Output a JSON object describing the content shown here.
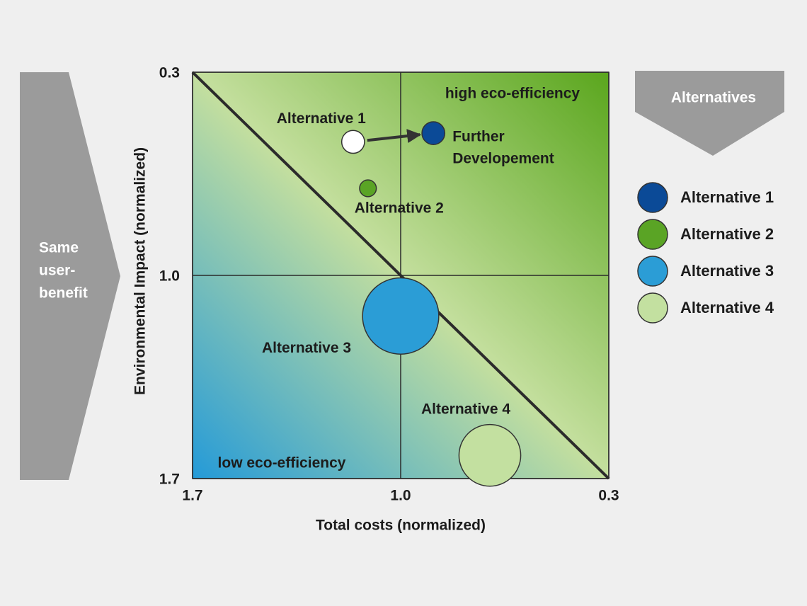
{
  "chart_data": {
    "type": "bubble",
    "xlabel": "Total costs (normalized)",
    "ylabel": "Environmental Impact (normalized)",
    "xlim": [
      1.7,
      0.3
    ],
    "ylim": [
      1.7,
      0.3
    ],
    "xticks": [
      1.7,
      {
        "value": 1,
        "label": "1.0"
      },
      0.3
    ],
    "yticks": [
      1.7,
      {
        "value": 1,
        "label": "1.0"
      },
      0.3
    ],
    "region_labels": [
      "high eco-efficiency",
      "low eco-efficiency"
    ],
    "benefit_label": [
      "Same",
      "user-",
      "benefit"
    ],
    "legend_title": "Alternatives",
    "series": [
      {
        "name": "Alternative 1",
        "color": "#0b4a97",
        "x": [
          1.16,
          0.89
        ],
        "y": [
          0.54,
          0.51
        ],
        "size": [
          2.6,
          2.6
        ],
        "point_colors": [
          "#ffffff",
          "#0b4a97"
        ],
        "point_labels": [
          [
            "Alternative 1"
          ],
          [
            "Further",
            "Developement"
          ]
        ]
      },
      {
        "name": "Alternative 2",
        "color": "#5aa425",
        "x": [
          1.11
        ],
        "y": [
          0.7
        ],
        "size": [
          1.4
        ],
        "point_colors": [
          "#5aa425"
        ],
        "point_labels": [
          [
            "Alternative 2"
          ]
        ]
      },
      {
        "name": "Alternative 3",
        "color": "#2b9dd6",
        "x": [
          1.0
        ],
        "y": [
          1.14
        ],
        "size": [
          29
        ],
        "point_colors": [
          "#2b9dd6"
        ],
        "point_labels": [
          [
            "Alternative 3"
          ]
        ]
      },
      {
        "name": "Alternative 4",
        "color": "#c3e0a0",
        "x": [
          0.7
        ],
        "y": [
          1.62
        ],
        "size": [
          19
        ],
        "point_colors": [
          "#c3e0a0"
        ],
        "point_labels": [
          [
            "Alternative 4"
          ]
        ]
      }
    ]
  }
}
